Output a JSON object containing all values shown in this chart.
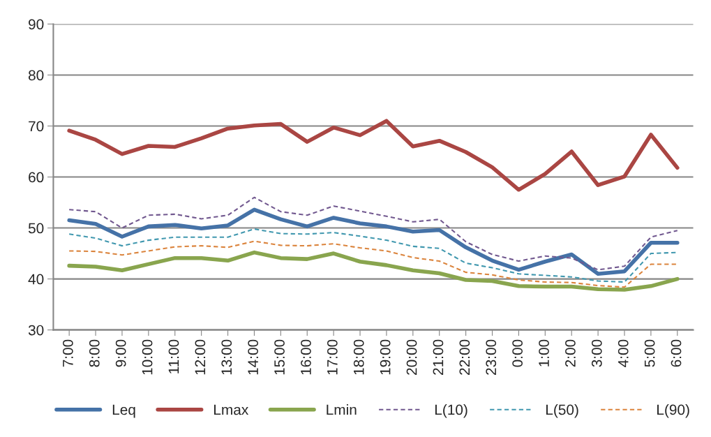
{
  "chart_data": {
    "type": "line",
    "categories": [
      "7:00",
      "8:00",
      "9:00",
      "10:00",
      "11:00",
      "12:00",
      "13:00",
      "14:00",
      "15:00",
      "16:00",
      "17:00",
      "18:00",
      "19:00",
      "20:00",
      "21:00",
      "22:00",
      "23:00",
      "0:00",
      "1:00",
      "2:00",
      "3:00",
      "4:00",
      "5:00",
      "6:00"
    ],
    "series": [
      {
        "name": "Leq",
        "color": "#4572a7",
        "line_style": "solid",
        "values": [
          51.5,
          50.8,
          48.3,
          50.3,
          50.6,
          49.9,
          50.5,
          53.6,
          51.7,
          50.3,
          52.0,
          50.9,
          50.3,
          49.3,
          49.6,
          46.2,
          43.6,
          41.8,
          43.4,
          44.8,
          41.0,
          41.5,
          47.1,
          47.1
        ]
      },
      {
        "name": "Lmax",
        "color": "#aa4643",
        "line_style": "solid",
        "values": [
          69.1,
          67.3,
          64.5,
          66.1,
          65.9,
          67.6,
          69.5,
          70.1,
          70.4,
          66.9,
          69.7,
          68.2,
          71.0,
          66.0,
          67.1,
          64.9,
          61.9,
          57.5,
          60.6,
          65.0,
          58.4,
          60.1,
          68.3,
          61.8
        ]
      },
      {
        "name": "Lmin",
        "color": "#89a54e",
        "line_style": "solid",
        "values": [
          42.6,
          42.4,
          41.7,
          42.9,
          44.1,
          44.1,
          43.6,
          45.2,
          44.1,
          43.9,
          45.0,
          43.4,
          42.7,
          41.7,
          41.1,
          39.8,
          39.6,
          38.6,
          38.5,
          38.5,
          38.0,
          37.9,
          38.6,
          40.0
        ]
      },
      {
        "name": "L(10)",
        "color": "#71588f",
        "line_style": "dashed",
        "values": [
          53.6,
          53.2,
          50.0,
          52.5,
          52.7,
          51.8,
          52.5,
          56.0,
          53.2,
          52.5,
          54.3,
          53.3,
          52.3,
          51.2,
          51.7,
          47.3,
          44.8,
          43.5,
          44.5,
          44.1,
          41.8,
          42.5,
          48.2,
          49.5
        ]
      },
      {
        "name": "L(50)",
        "color": "#4198af",
        "line_style": "dashed",
        "values": [
          48.8,
          48.0,
          46.5,
          47.6,
          48.2,
          48.2,
          48.2,
          49.8,
          48.9,
          48.8,
          49.1,
          48.4,
          47.6,
          46.4,
          46.0,
          43.1,
          42.2,
          41.0,
          40.7,
          40.4,
          39.6,
          39.4,
          45.0,
          45.2
        ]
      },
      {
        "name": "L(90)",
        "color": "#db843d",
        "line_style": "dashed",
        "values": [
          45.5,
          45.4,
          44.7,
          45.5,
          46.3,
          46.5,
          46.2,
          47.4,
          46.6,
          46.5,
          46.9,
          46.1,
          45.5,
          44.2,
          43.5,
          41.3,
          40.8,
          39.8,
          39.4,
          39.3,
          38.7,
          38.4,
          42.9,
          42.9
        ]
      }
    ],
    "ylim": [
      30,
      90
    ],
    "yticks": [
      30,
      40,
      50,
      60,
      70,
      80,
      90
    ],
    "grid": "y",
    "legend": "bottom",
    "marker": "none"
  }
}
